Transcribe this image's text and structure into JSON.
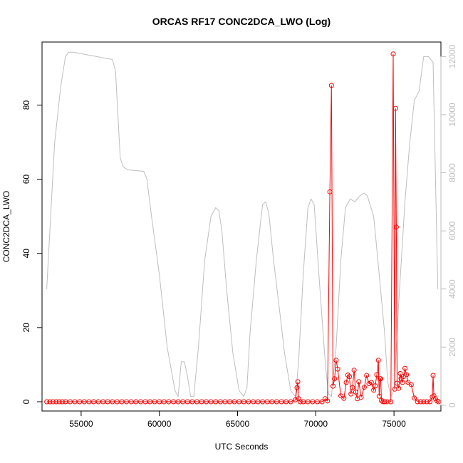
{
  "chart_data": {
    "type": "line",
    "title": "ORCAS RF17 CONC2DCA_LWO (Log)",
    "xlabel": "UTC Seconds",
    "ylabel": "CONC2DCA_LWO",
    "xlim": [
      52500,
      78000
    ],
    "ylim": [
      -2.5,
      97
    ],
    "y2lim": [
      -200,
      12500
    ],
    "x_ticks": [
      55000,
      60000,
      65000,
      70000,
      75000
    ],
    "y_ticks": [
      0,
      20,
      40,
      60,
      80
    ],
    "y2_ticks": [
      0,
      2000,
      4000,
      6000,
      8000,
      10000,
      12000
    ],
    "series": [
      {
        "axis": "left",
        "style": "line+open-circles",
        "color": "#ff0000",
        "x": [
          52800,
          53000,
          53200,
          53400,
          53600,
          53800,
          54000,
          54300,
          54600,
          54900,
          55200,
          55500,
          55800,
          56100,
          56400,
          56700,
          57000,
          57300,
          57600,
          57900,
          58200,
          58500,
          58800,
          59100,
          59400,
          59700,
          60000,
          60300,
          60600,
          60900,
          61200,
          61500,
          61800,
          62100,
          62400,
          62700,
          63000,
          63300,
          63600,
          63900,
          64200,
          64500,
          64800,
          65100,
          65400,
          65700,
          66000,
          66300,
          66600,
          66900,
          67200,
          67500,
          67800,
          68100,
          68400,
          68700,
          68800,
          68850,
          68900,
          69000,
          69200,
          69500,
          69800,
          70100,
          70400,
          70600,
          70750,
          70900,
          71000,
          71100,
          71200,
          71300,
          71400,
          71600,
          71800,
          71950,
          72050,
          72150,
          72250,
          72350,
          72450,
          72550,
          72650,
          72750,
          72900,
          73100,
          73250,
          73400,
          73550,
          73700,
          73800,
          73900,
          74000,
          74050,
          74100,
          74150,
          74200,
          74300,
          74400,
          74550,
          74800,
          74950,
          75050,
          75100,
          75150,
          75200,
          75300,
          75400,
          75450,
          75550,
          75600,
          75700,
          75800,
          75900,
          76100,
          76300,
          76500,
          76700,
          76900,
          77100,
          77300,
          77450,
          77500,
          77550,
          77650,
          77750,
          77850
        ],
        "values": [
          0,
          0,
          0,
          0,
          0,
          0,
          0,
          0,
          0,
          0,
          0,
          0,
          0,
          0,
          0,
          0,
          0,
          0,
          0,
          0,
          0,
          0,
          0,
          0,
          0,
          0,
          0,
          0,
          0,
          0,
          0,
          0,
          0,
          0,
          0,
          0,
          0,
          0,
          0,
          0,
          0,
          0,
          0,
          0,
          0,
          0,
          0,
          0,
          0,
          0,
          0,
          0,
          0,
          0,
          0,
          0.5,
          3.8,
          5.4,
          0.8,
          0,
          0,
          0,
          0,
          0,
          0,
          0.8,
          0.2,
          56.6,
          85.3,
          4.2,
          6.2,
          11.2,
          8.8,
          1.6,
          0.9,
          5.2,
          7.2,
          6.8,
          2.1,
          3.8,
          8.5,
          2.6,
          0.8,
          5.4,
          1.2,
          3.9,
          7.1,
          4.9,
          5.2,
          3.1,
          4.3,
          7.3,
          11.2,
          1.5,
          6.2,
          6.2,
          0.3,
          0,
          0,
          0,
          0,
          93.8,
          3.4,
          79.1,
          47.1,
          5.0,
          3.6,
          7.6,
          6.3,
          5.2,
          6.8,
          9.0,
          7.3,
          5.2,
          4.6,
          1.0,
          0,
          0,
          0,
          0,
          0,
          1.3,
          7.1,
          1.6,
          0.8,
          0.2,
          0
        ]
      },
      {
        "axis": "right",
        "style": "line",
        "color": "#bebebe",
        "x": [
          52800,
          53300,
          53700,
          54000,
          54200,
          54500,
          55500,
          57000,
          57200,
          57500,
          57700,
          58000,
          59000,
          59200,
          59500,
          60000,
          60500,
          61000,
          61200,
          61400,
          61600,
          61800,
          62000,
          62200,
          62500,
          62900,
          63300,
          63600,
          63800,
          64000,
          64300,
          64700,
          65100,
          65400,
          65600,
          65800,
          66200,
          66600,
          66800,
          67000,
          67300,
          67700,
          68000,
          68400,
          68700,
          68900,
          69200,
          69500,
          69700,
          69900,
          70200,
          70600,
          70800,
          71000,
          71300,
          71600,
          71900,
          72200,
          72500,
          72800,
          73100,
          73300,
          73700,
          74000,
          74400,
          74600,
          74800,
          75000,
          75300,
          75700,
          76000,
          76300,
          76600,
          76900,
          77200,
          77500,
          77800
        ],
        "values": [
          4000,
          9000,
          11000,
          12000,
          12150,
          12150,
          12050,
          11900,
          11500,
          8500,
          8200,
          8100,
          8050,
          7800,
          6500,
          4500,
          2000,
          500,
          300,
          1500,
          1500,
          1000,
          300,
          300,
          2000,
          5000,
          6500,
          6800,
          6700,
          6000,
          4000,
          1800,
          500,
          300,
          600,
          2500,
          5000,
          6900,
          7000,
          6600,
          5000,
          3200,
          1800,
          500,
          300,
          1500,
          4500,
          6800,
          7100,
          6900,
          4500,
          1500,
          400,
          300,
          2000,
          5000,
          6800,
          7100,
          7000,
          7200,
          7300,
          7200,
          6500,
          4800,
          2500,
          800,
          300,
          500,
          3500,
          7000,
          9000,
          10500,
          10800,
          12000,
          12000,
          11800,
          4000
        ]
      }
    ]
  }
}
